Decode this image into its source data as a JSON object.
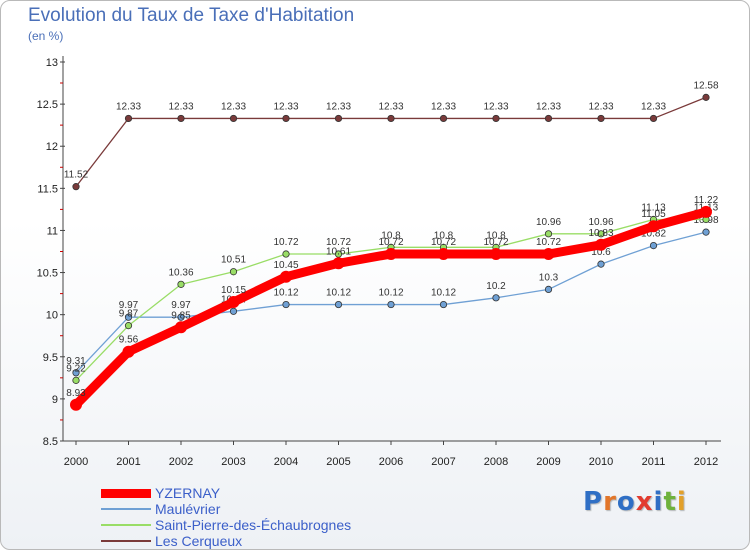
{
  "title": "Evolution du Taux de Taxe d'Habitation",
  "subtitle": "(en %)",
  "logo": {
    "text": "Proxiti",
    "letter_colors": [
      "#2f6fc5",
      "#e2762a",
      "#2f6fc5",
      "#e23b2f",
      "#2f6fc5",
      "#6fb23c",
      "#e2a02a"
    ]
  },
  "chart_data": {
    "type": "line",
    "x": [
      "2000",
      "2001",
      "2002",
      "2003",
      "2004",
      "2005",
      "2006",
      "2007",
      "2008",
      "2009",
      "2010",
      "2011",
      "2012"
    ],
    "ylim": [
      8.5,
      13
    ],
    "yticks": [
      "8.5",
      "9",
      "9.5",
      "10",
      "10.5",
      "11",
      "11.5",
      "12",
      "12.5",
      "13"
    ],
    "grid": false,
    "legend_position": "bottom-left",
    "series": [
      {
        "name": "YZERNAY",
        "color": "#ff0000",
        "values": [
          8.93,
          9.56,
          9.85,
          10.15,
          10.45,
          10.61,
          10.72,
          10.72,
          10.72,
          10.72,
          10.83,
          11.05,
          11.22
        ],
        "labels": [
          "8.93",
          "9.56",
          "9.85",
          "10.15",
          "10.45",
          "10.61",
          "10.72",
          "10.72",
          "10.72",
          "10.72",
          "10.83",
          "11.05",
          "11.22"
        ]
      },
      {
        "name": "Maulévrier",
        "color": "#6fa0d4",
        "values": [
          9.31,
          9.97,
          9.97,
          10.04,
          10.12,
          10.12,
          10.12,
          10.12,
          10.2,
          10.3,
          10.6,
          10.82,
          10.98
        ],
        "labels": [
          "9.31",
          "9.97",
          "9.97",
          "10.04",
          "10.12",
          "10.12",
          "10.12",
          "10.12",
          "10.2",
          "10.3",
          "10.6",
          "10.82",
          "10.98"
        ]
      },
      {
        "name": "Saint-Pierre-des-Échaubrognes",
        "color": "#99dd66",
        "values": [
          9.22,
          9.87,
          10.36,
          10.51,
          10.72,
          10.72,
          10.8,
          10.8,
          10.8,
          10.96,
          10.96,
          11.13,
          11.13
        ],
        "labels": [
          "9.22",
          "9.87",
          "10.36",
          "10.51",
          "10.72",
          "10.72",
          "10.8",
          "10.8",
          "10.8",
          "10.96",
          "10.96",
          "11.13",
          "11.13"
        ]
      },
      {
        "name": "Les Cerqueux",
        "color": "#7a3a3a",
        "values": [
          11.52,
          12.33,
          12.33,
          12.33,
          12.33,
          12.33,
          12.33,
          12.33,
          12.33,
          12.33,
          12.33,
          12.33,
          12.58
        ],
        "labels": [
          "11.52",
          "12.33",
          "12.33",
          "12.33",
          "12.33",
          "12.33",
          "12.33",
          "12.33",
          "12.33",
          "12.33",
          "12.33",
          "12.33",
          "12.58"
        ]
      }
    ]
  }
}
